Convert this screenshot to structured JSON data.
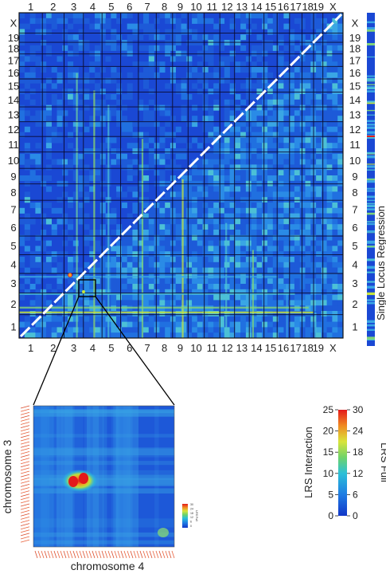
{
  "chart_data": [
    {
      "type": "heatmap",
      "title": "",
      "chromosomes": [
        "1",
        "2",
        "3",
        "4",
        "5",
        "6",
        "7",
        "8",
        "9",
        "10",
        "11",
        "12",
        "13",
        "14",
        "15",
        "16",
        "17",
        "18",
        "19",
        "X"
      ],
      "upper_triangle_metric": "LRS Interaction",
      "lower_triangle_metric": "LRS Full",
      "side_panel_label": "Single Locus Regression",
      "highlighted_peak": {
        "x_chromosome": "4",
        "y_chromosome": "3"
      },
      "colors": {
        "low": "#1a4fd6",
        "mid": "#2aa8e0",
        "high_mid": "#c8e63a",
        "high": "#e8211c"
      }
    },
    {
      "type": "heatmap",
      "xlabel": "chromosome 4",
      "ylabel": "chromosome 3",
      "peak": {
        "x": 0.33,
        "y": 0.52
      }
    }
  ],
  "colorbar": {
    "left_label": "LRS Interaction",
    "right_label": "LRS Full",
    "left_ticks": [
      "25",
      "20",
      "15",
      "10",
      "5",
      "0"
    ],
    "right_ticks": [
      "30",
      "24",
      "18",
      "12",
      "6",
      "0"
    ],
    "range_interaction": [
      0,
      25
    ],
    "range_full": [
      0,
      30
    ]
  },
  "mini_colorbar": {
    "ticks": [
      "30",
      "24",
      "18",
      "12",
      "6",
      "0"
    ],
    "label": "LRS Full"
  }
}
